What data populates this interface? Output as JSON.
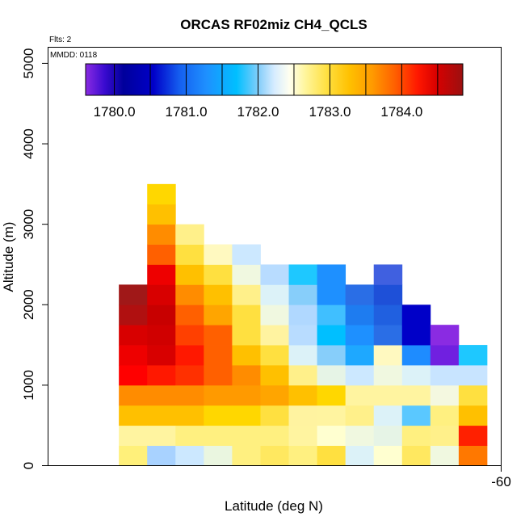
{
  "chart_data": {
    "type": "heatmap",
    "title": "ORCAS RF02miz CH4_QCLS",
    "xlabel": "Latitude (deg N)",
    "ylabel": "Altitude (m)",
    "flights_note": "Flts: 2",
    "date_note": "MMDD: 0118",
    "xlim": [
      -68.0,
      -60.0
    ],
    "ylim": [
      0,
      5200
    ],
    "x_ticks": [
      {
        "value": -60,
        "label": "-60"
      }
    ],
    "y_ticks": [
      {
        "value": 0,
        "label": "0"
      },
      {
        "value": 1000,
        "label": "1000"
      },
      {
        "value": 2000,
        "label": "2000"
      },
      {
        "value": 3000,
        "label": "3000"
      },
      {
        "value": 4000,
        "label": "4000"
      },
      {
        "value": 5000,
        "label": "5000"
      }
    ],
    "colorbar": {
      "min": 1779.6,
      "max": 1784.85,
      "ticks": [
        {
          "value": 1780.0,
          "label": "1780.0"
        },
        {
          "value": 1781.0,
          "label": "1781.0"
        },
        {
          "value": 1782.0,
          "label": "1782.0"
        },
        {
          "value": 1783.0,
          "label": "1783.0"
        },
        {
          "value": 1784.0,
          "label": "1784.0"
        }
      ],
      "color_stops": [
        [
          0.0,
          "#8a2be2"
        ],
        [
          0.05,
          "#3a0bd0"
        ],
        [
          0.1,
          "#00009b"
        ],
        [
          0.18,
          "#0000c8"
        ],
        [
          0.25,
          "#1560f0"
        ],
        [
          0.32,
          "#1e90ff"
        ],
        [
          0.4,
          "#00bfff"
        ],
        [
          0.46,
          "#87cefa"
        ],
        [
          0.5,
          "#d6ecff"
        ],
        [
          0.54,
          "#fffff0"
        ],
        [
          0.58,
          "#fff6a0"
        ],
        [
          0.64,
          "#ffe040"
        ],
        [
          0.7,
          "#ffc000"
        ],
        [
          0.76,
          "#ff9a00"
        ],
        [
          0.82,
          "#ff6000"
        ],
        [
          0.88,
          "#ff1800"
        ],
        [
          0.93,
          "#d80000"
        ],
        [
          1.0,
          "#9b1010"
        ]
      ]
    },
    "cell_width_deg": 0.5,
    "cell_height_m": 250,
    "columns": [
      {
        "lat": -66.5,
        "cells": [
          [
            "#fff07a",
            "#fff4a0",
            "#ffc000",
            "#ff8c00",
            "#ff0000",
            "#ee0000",
            "#d80000",
            "#b01010",
            "#a01818"
          ]
        ]
      },
      {
        "lat": -66.0,
        "cells": [
          [
            "#a8d2ff",
            "#fff4a0",
            "#ffc000",
            "#ff8c00",
            "#ff1800",
            "#d80000",
            "#d00000",
            "#c80000",
            "#d80000",
            "#ee0000",
            "#ff6000",
            "#ff8c00",
            "#ffc000",
            "#ffd700"
          ]
        ]
      },
      {
        "lat": -65.5,
        "cells": [
          [
            "#cce8ff",
            "#fff080",
            "#ffc000",
            "#ff8c00",
            "#ff3000",
            "#ff1800",
            "#ff4000",
            "#ff6000",
            "#ff8c00",
            "#ffc000",
            "#ffe040",
            "#fff08a"
          ]
        ]
      },
      {
        "lat": -65.0,
        "cells": [
          [
            "#eaf6e0",
            "#fff080",
            "#ffd700",
            "#ff9a00",
            "#ff6000",
            "#ff6000",
            "#ff6000",
            "#ffa500",
            "#ffc000",
            "#ffe040",
            "#fff9c0"
          ]
        ]
      },
      {
        "lat": -64.5,
        "cells": [
          [
            "#fff080",
            "#fff080",
            "#ffd700",
            "#ff9a00",
            "#ff8c00",
            "#ffc000",
            "#ffe040",
            "#ffe040",
            "#fff08a",
            "#f0f8e0",
            "#cce8ff"
          ]
        ]
      },
      {
        "lat": -64.0,
        "cells": [
          [
            "#ffe860",
            "#fff080",
            "#ffe040",
            "#ffa500",
            "#ffc000",
            "#ffe040",
            "#fff3a0",
            "#f0f8e0",
            "#dcf2f8",
            "#b8dcff"
          ]
        ]
      },
      {
        "lat": -63.5,
        "cells": [
          [
            "#fff080",
            "#fff4a0",
            "#fff3a0",
            "#ffc000",
            "#fff08a",
            "#dcf2f8",
            "#b8dcff",
            "#b0d8ff",
            "#87cefa",
            "#1ec8ff"
          ]
        ]
      },
      {
        "lat": -63.0,
        "cells": [
          [
            "#ffe040",
            "#ffffd0",
            "#fff4a0",
            "#ffd700",
            "#e6f4e6",
            "#87cefa",
            "#00bfff",
            "#40bfff",
            "#1e90ff",
            "#1e90ff"
          ]
        ]
      },
      {
        "lat": -62.5,
        "cells": [
          [
            "#dcf2f8",
            "#f0f8e0",
            "#fff08a",
            "#fff4a0",
            "#cce8ff",
            "#1ea8ff",
            "#1e90ff",
            "#1e7cf0",
            "#2a6ee6"
          ]
        ]
      },
      {
        "lat": -62.0,
        "cells": [
          [
            "#ffffd0",
            "#e6f4e6",
            "#dcf2f8",
            "#fff4a0",
            "#f0f8e0",
            "#fff9c0",
            "#2a6ee6",
            "#2060e0",
            "#1e50d8",
            "#4060e0"
          ]
        ]
      },
      {
        "lat": -61.5,
        "cells": [
          [
            "#ffe860",
            "#fff080",
            "#5ac8ff",
            "#fff4a0",
            "#dcf2f8",
            "#1e8cff",
            "#0000c8",
            "#0000c8"
          ]
        ]
      },
      {
        "lat": -61.0,
        "cells": [
          [
            "#f0f8e0",
            "#fff08a",
            "#fff080",
            "#f4f8e0",
            "#c8e4ff",
            "#7020e0",
            "#8a2be2"
          ]
        ]
      },
      {
        "lat": -60.5,
        "cells": [
          [
            "#ff7800",
            "#ff2000",
            "#ffc000",
            "#ffe040",
            "#c8e4ff",
            "#1ec8ff"
          ]
        ]
      }
    ]
  }
}
